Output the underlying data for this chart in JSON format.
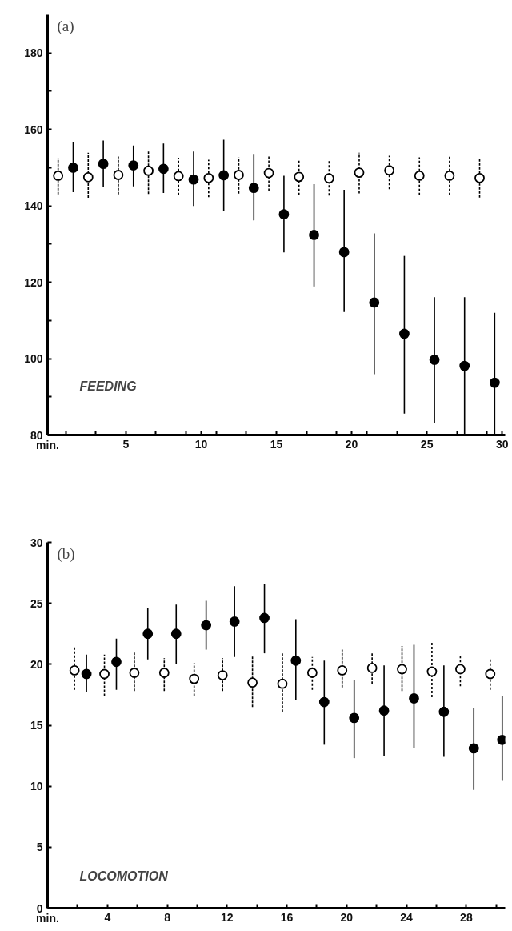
{
  "chart_data": [
    {
      "type": "scatter",
      "title": "(a)",
      "xlabel": "min.",
      "annotations": [
        "FEEDING"
      ],
      "xlim": [
        -0.2,
        30.2
      ],
      "ylim": [
        80,
        190
      ],
      "xticks": [
        {
          "value": 1,
          "label": null
        },
        {
          "value": 3,
          "label": null
        },
        5,
        {
          "value": 7,
          "label": null
        },
        {
          "value": 9,
          "label": null
        },
        10,
        {
          "value": 11,
          "label": null
        },
        {
          "value": 13,
          "label": null
        },
        15,
        {
          "value": 17,
          "label": null
        },
        {
          "value": 19,
          "label": null
        },
        20,
        {
          "value": 21,
          "label": null
        },
        {
          "value": 23,
          "label": null
        },
        25,
        {
          "value": 27,
          "label": null
        },
        {
          "value": 29,
          "label": null
        },
        30
      ],
      "yticks": [
        80,
        {
          "value": 90,
          "label": null
        },
        100,
        {
          "value": 110,
          "label": null
        },
        120,
        {
          "value": 130,
          "label": null
        },
        140,
        {
          "value": 150,
          "label": null
        },
        160,
        {
          "value": 170,
          "label": null
        },
        180
      ],
      "grid": false,
      "marker": "circle",
      "series": [
        {
          "color": "#000000",
          "line_style": "dashed",
          "x": [
            0.5,
            2.5,
            4.5,
            6.5,
            8.5,
            10.5,
            12.5,
            14.5,
            16.5,
            18.5,
            20.5,
            22.5,
            24.5,
            26.5,
            28.5
          ],
          "values": [
            147.9,
            147.5,
            148.1,
            149.2,
            147.8,
            147.3,
            148.1,
            148.6,
            147.6,
            147.2,
            148.7,
            149.3,
            147.9,
            147.9,
            147.3
          ],
          "errors": [
            [
              143.0,
              152.5
            ],
            [
              142.1,
              153.9
            ],
            [
              143.0,
              152.9
            ],
            [
              143.1,
              154.4
            ],
            [
              142.8,
              152.6
            ],
            [
              142.3,
              152.1
            ],
            [
              143.2,
              152.7
            ],
            [
              143.9,
              153.3
            ],
            [
              142.8,
              152.1
            ],
            [
              142.7,
              151.8
            ],
            [
              143.3,
              153.9
            ],
            [
              144.4,
              153.1
            ],
            [
              142.8,
              152.7
            ],
            [
              142.8,
              152.9
            ],
            [
              142.2,
              152.2
            ]
          ]
        },
        {
          "color": "#000000",
          "line_style": "solid",
          "x": [
            1.5,
            3.5,
            5.5,
            7.5,
            9.5,
            11.5,
            13.5,
            15.5,
            17.5,
            19.5,
            21.5,
            23.5,
            25.5,
            27.5,
            29.5
          ],
          "values": [
            150.0,
            151.0,
            150.6,
            149.7,
            146.9,
            148.0,
            144.7,
            137.8,
            132.4,
            127.9,
            114.7,
            106.5,
            99.7,
            98.1,
            93.7
          ],
          "errors": [
            [
              143.6,
              156.7
            ],
            [
              144.9,
              157.1
            ],
            [
              145.1,
              155.8
            ],
            [
              143.4,
              156.3
            ],
            [
              140.0,
              154.2
            ],
            [
              138.6,
              157.3
            ],
            [
              136.2,
              153.4
            ],
            [
              127.8,
              147.9
            ],
            [
              118.9,
              145.7
            ],
            [
              112.2,
              144.2
            ],
            [
              95.9,
              132.8
            ],
            [
              85.6,
              126.9
            ],
            [
              83.2,
              116.1
            ],
            [
              80.0,
              116.1
            ],
            [
              80.0,
              112.0
            ]
          ]
        }
      ]
    },
    {
      "type": "scatter",
      "title": "(b)",
      "xlabel": "min.",
      "annotations": [
        "LOCOMOTION"
      ],
      "xlim": [
        0,
        30.6
      ],
      "ylim": [
        0,
        30
      ],
      "xticks": [
        {
          "value": 2,
          "label": null
        },
        4,
        {
          "value": 6,
          "label": null
        },
        8,
        {
          "value": 10,
          "label": null
        },
        12,
        {
          "value": 14,
          "label": null
        },
        16,
        {
          "value": 18,
          "label": null
        },
        20,
        {
          "value": 22,
          "label": null
        },
        24,
        {
          "value": 26,
          "label": null
        },
        28,
        {
          "value": 30,
          "label": null
        }
      ],
      "yticks": [
        0,
        5,
        10,
        15,
        20,
        25,
        30
      ],
      "grid": false,
      "marker": "circle",
      "series": [
        {
          "color": "#000000",
          "line_style": "dashed",
          "x": [
            1.8,
            3.8,
            5.8,
            7.8,
            9.8,
            11.7,
            13.7,
            15.7,
            17.7,
            19.7,
            21.7,
            23.7,
            25.7,
            27.6,
            29.6
          ],
          "values": [
            19.5,
            19.2,
            19.3,
            19.3,
            18.8,
            19.1,
            18.5,
            18.4,
            19.3,
            19.5,
            19.7,
            19.6,
            19.4,
            19.6,
            19.2
          ],
          "errors": [
            [
              17.9,
              21.5
            ],
            [
              17.4,
              20.8
            ],
            [
              17.8,
              21.0
            ],
            [
              17.8,
              20.5
            ],
            [
              17.4,
              20.1
            ],
            [
              17.8,
              20.5
            ],
            [
              16.5,
              20.7
            ],
            [
              16.1,
              21.0
            ],
            [
              17.9,
              20.6
            ],
            [
              18.1,
              21.2
            ],
            [
              18.4,
              21.0
            ],
            [
              17.8,
              21.5
            ],
            [
              17.3,
              21.9
            ],
            [
              18.2,
              20.8
            ],
            [
              17.9,
              20.5
            ]
          ]
        },
        {
          "color": "#000000",
          "line_style": "solid",
          "x": [
            2.6,
            4.6,
            6.7,
            8.6,
            10.6,
            12.5,
            14.5,
            16.6,
            18.5,
            20.5,
            22.5,
            24.5,
            26.5,
            28.5,
            30.4
          ],
          "values": [
            19.2,
            20.2,
            22.5,
            22.5,
            23.2,
            23.5,
            23.8,
            20.3,
            16.9,
            15.6,
            16.2,
            17.2,
            16.1,
            13.1,
            13.8
          ],
          "errors": [
            [
              17.7,
              20.8
            ],
            [
              17.9,
              22.1
            ],
            [
              20.4,
              24.6
            ],
            [
              20.0,
              24.9
            ],
            [
              21.2,
              25.2
            ],
            [
              20.6,
              26.4
            ],
            [
              20.9,
              26.6
            ],
            [
              17.1,
              23.7
            ],
            [
              13.4,
              20.3
            ],
            [
              12.3,
              18.7
            ],
            [
              12.5,
              19.9
            ],
            [
              13.1,
              21.6
            ],
            [
              12.4,
              19.9
            ],
            [
              9.7,
              16.4
            ],
            [
              10.5,
              17.4
            ]
          ]
        }
      ]
    }
  ]
}
